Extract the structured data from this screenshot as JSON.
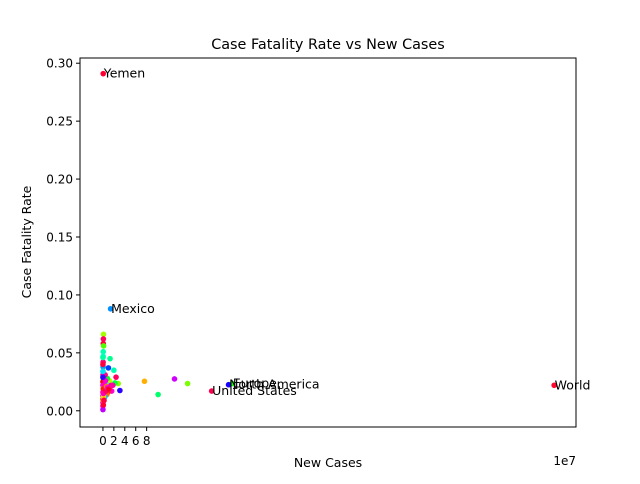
{
  "chart_data": {
    "type": "scatter",
    "title": "Case Fatality Rate vs New Cases",
    "xlabel": "New Cases",
    "ylabel": "Case Fatality Rate",
    "x_offset_label": "1e7",
    "xlim": [
      -4.2,
      86.6
    ],
    "ylim": [
      -0.014,
      0.3045
    ],
    "x_unit_multiplier": 10000000,
    "xticks": [
      0,
      2,
      4,
      6,
      8
    ],
    "xtick_labels": [
      "0",
      "2",
      "4",
      "6",
      "8"
    ],
    "yticks": [
      0.0,
      0.05,
      0.1,
      0.15,
      0.2,
      0.25,
      0.3
    ],
    "ytick_labels": [
      "0.00",
      "0.05",
      "0.10",
      "0.15",
      "0.20",
      "0.25",
      "0.30"
    ],
    "grid": false,
    "legend": "none",
    "points": [
      {
        "x": 82.6,
        "y": 0.022,
        "color": "#ff0a2e",
        "label": "World"
      },
      {
        "x": 23.7,
        "y": 0.0235,
        "color": "#1aff00",
        "label": "Europe"
      },
      {
        "x": 23.0,
        "y": 0.0225,
        "color": "#1a00ff",
        "label": "North America"
      },
      {
        "x": 19.9,
        "y": 0.017,
        "color": "#ff0050",
        "label": "United States"
      },
      {
        "x": 1.4,
        "y": 0.088,
        "color": "#0090ff",
        "label": "Mexico"
      },
      {
        "x": 0.05,
        "y": 0.291,
        "color": "#ff0030",
        "label": "Yemen"
      },
      {
        "x": 15.5,
        "y": 0.0235,
        "color": "#7aff00",
        "label": ""
      },
      {
        "x": 13.1,
        "y": 0.0275,
        "color": "#d000ff",
        "label": ""
      },
      {
        "x": 10.1,
        "y": 0.014,
        "color": "#00ff6a",
        "label": ""
      },
      {
        "x": 7.6,
        "y": 0.0255,
        "color": "#ffb000",
        "label": ""
      },
      {
        "x": 3.1,
        "y": 0.0175,
        "color": "#2a00ff",
        "label": ""
      },
      {
        "x": 2.8,
        "y": 0.0235,
        "color": "#8cff00",
        "label": ""
      },
      {
        "x": 2.4,
        "y": 0.029,
        "color": "#ff0060",
        "label": ""
      },
      {
        "x": 2.2,
        "y": 0.024,
        "color": "#00ff40",
        "label": ""
      },
      {
        "x": 2.0,
        "y": 0.035,
        "color": "#00ffb0",
        "label": ""
      },
      {
        "x": 1.8,
        "y": 0.022,
        "color": "#ff00a0",
        "label": ""
      },
      {
        "x": 1.6,
        "y": 0.017,
        "color": "#ff00d0",
        "label": ""
      },
      {
        "x": 1.3,
        "y": 0.045,
        "color": "#00ff90",
        "label": ""
      },
      {
        "x": 1.2,
        "y": 0.026,
        "color": "#c0ff00",
        "label": ""
      },
      {
        "x": 1.0,
        "y": 0.037,
        "color": "#0040ff",
        "label": ""
      },
      {
        "x": 0.9,
        "y": 0.016,
        "color": "#ff2a00",
        "label": ""
      },
      {
        "x": 0.8,
        "y": 0.028,
        "color": "#00ff30",
        "label": ""
      },
      {
        "x": 0.7,
        "y": 0.014,
        "color": "#ff6a00",
        "label": ""
      },
      {
        "x": 0.6,
        "y": 0.023,
        "color": "#00ffd0",
        "label": ""
      },
      {
        "x": 0.5,
        "y": 0.02,
        "color": "#e0ff00",
        "label": ""
      },
      {
        "x": 0.4,
        "y": 0.031,
        "color": "#ff0080",
        "label": ""
      },
      {
        "x": 0.35,
        "y": 0.012,
        "color": "#00c0ff",
        "label": ""
      },
      {
        "x": 0.3,
        "y": 0.025,
        "color": "#ff00ff",
        "label": ""
      },
      {
        "x": 0.25,
        "y": 0.018,
        "color": "#9000ff",
        "label": ""
      },
      {
        "x": 0.2,
        "y": 0.027,
        "color": "#00ffff",
        "label": ""
      },
      {
        "x": 0.15,
        "y": 0.021,
        "color": "#ff4000",
        "label": ""
      },
      {
        "x": 0.1,
        "y": 0.066,
        "color": "#a0ff00",
        "label": ""
      },
      {
        "x": 0.08,
        "y": 0.062,
        "color": "#ff0060",
        "label": ""
      },
      {
        "x": 0.06,
        "y": 0.058,
        "color": "#ff0040",
        "label": ""
      },
      {
        "x": 0.12,
        "y": 0.056,
        "color": "#50ff00",
        "label": ""
      },
      {
        "x": 0.05,
        "y": 0.051,
        "color": "#00ffb0",
        "label": ""
      },
      {
        "x": 0.04,
        "y": 0.047,
        "color": "#00ffd0",
        "label": ""
      },
      {
        "x": 0.03,
        "y": 0.042,
        "color": "#ff0070",
        "label": ""
      },
      {
        "x": 0.02,
        "y": 0.038,
        "color": "#00a0ff",
        "label": ""
      },
      {
        "x": 0.02,
        "y": 0.034,
        "color": "#ffd000",
        "label": ""
      },
      {
        "x": 0.01,
        "y": 0.031,
        "color": "#ff00a0",
        "label": ""
      },
      {
        "x": 0.01,
        "y": 0.028,
        "color": "#00ff50",
        "label": ""
      },
      {
        "x": 0.0,
        "y": 0.025,
        "color": "#ff0000",
        "label": ""
      },
      {
        "x": 0.0,
        "y": 0.022,
        "color": "#ff00c0",
        "label": ""
      },
      {
        "x": 0.0,
        "y": 0.019,
        "color": "#ffa000",
        "label": ""
      },
      {
        "x": 0.0,
        "y": 0.016,
        "color": "#ff0090",
        "label": ""
      },
      {
        "x": 0.0,
        "y": 0.013,
        "color": "#e000ff",
        "label": ""
      },
      {
        "x": 0.0,
        "y": 0.01,
        "color": "#ff0050",
        "label": ""
      },
      {
        "x": 0.0,
        "y": 0.007,
        "color": "#ff00e0",
        "label": ""
      },
      {
        "x": 0.0,
        "y": 0.004,
        "color": "#ff00ff",
        "label": ""
      },
      {
        "x": 0.0,
        "y": 0.001,
        "color": "#c000ff",
        "label": ""
      },
      {
        "x": 0.05,
        "y": 0.009,
        "color": "#ff7000",
        "label": ""
      },
      {
        "x": 0.07,
        "y": 0.005,
        "color": "#ff0030",
        "label": ""
      },
      {
        "x": 0.1,
        "y": 0.012,
        "color": "#ffcc00",
        "label": ""
      },
      {
        "x": 0.12,
        "y": 0.019,
        "color": "#ff0070",
        "label": ""
      },
      {
        "x": 0.09,
        "y": 0.015,
        "color": "#ff00b0",
        "label": ""
      },
      {
        "x": 0.2,
        "y": 0.009,
        "color": "#ff0040",
        "label": ""
      },
      {
        "x": 0.3,
        "y": 0.019,
        "color": "#ff2000",
        "label": ""
      },
      {
        "x": 0.45,
        "y": 0.026,
        "color": "#ff00d0",
        "label": ""
      },
      {
        "x": 0.55,
        "y": 0.017,
        "color": "#ff0060",
        "label": ""
      },
      {
        "x": 0.65,
        "y": 0.021,
        "color": "#ff8000",
        "label": ""
      },
      {
        "x": 0.85,
        "y": 0.02,
        "color": "#ff00f0",
        "label": ""
      },
      {
        "x": 1.1,
        "y": 0.019,
        "color": "#ff0020",
        "label": ""
      },
      {
        "x": 1.5,
        "y": 0.022,
        "color": "#ff00a0",
        "label": ""
      },
      {
        "x": 0.0,
        "y": 0.029,
        "color": "#3000ff",
        "label": ""
      },
      {
        "x": 0.0,
        "y": 0.034,
        "color": "#00e0ff",
        "label": ""
      },
      {
        "x": 0.0,
        "y": 0.046,
        "color": "#00ffa0",
        "label": ""
      },
      {
        "x": 0.0,
        "y": 0.04,
        "color": "#ff0040",
        "label": ""
      }
    ]
  }
}
